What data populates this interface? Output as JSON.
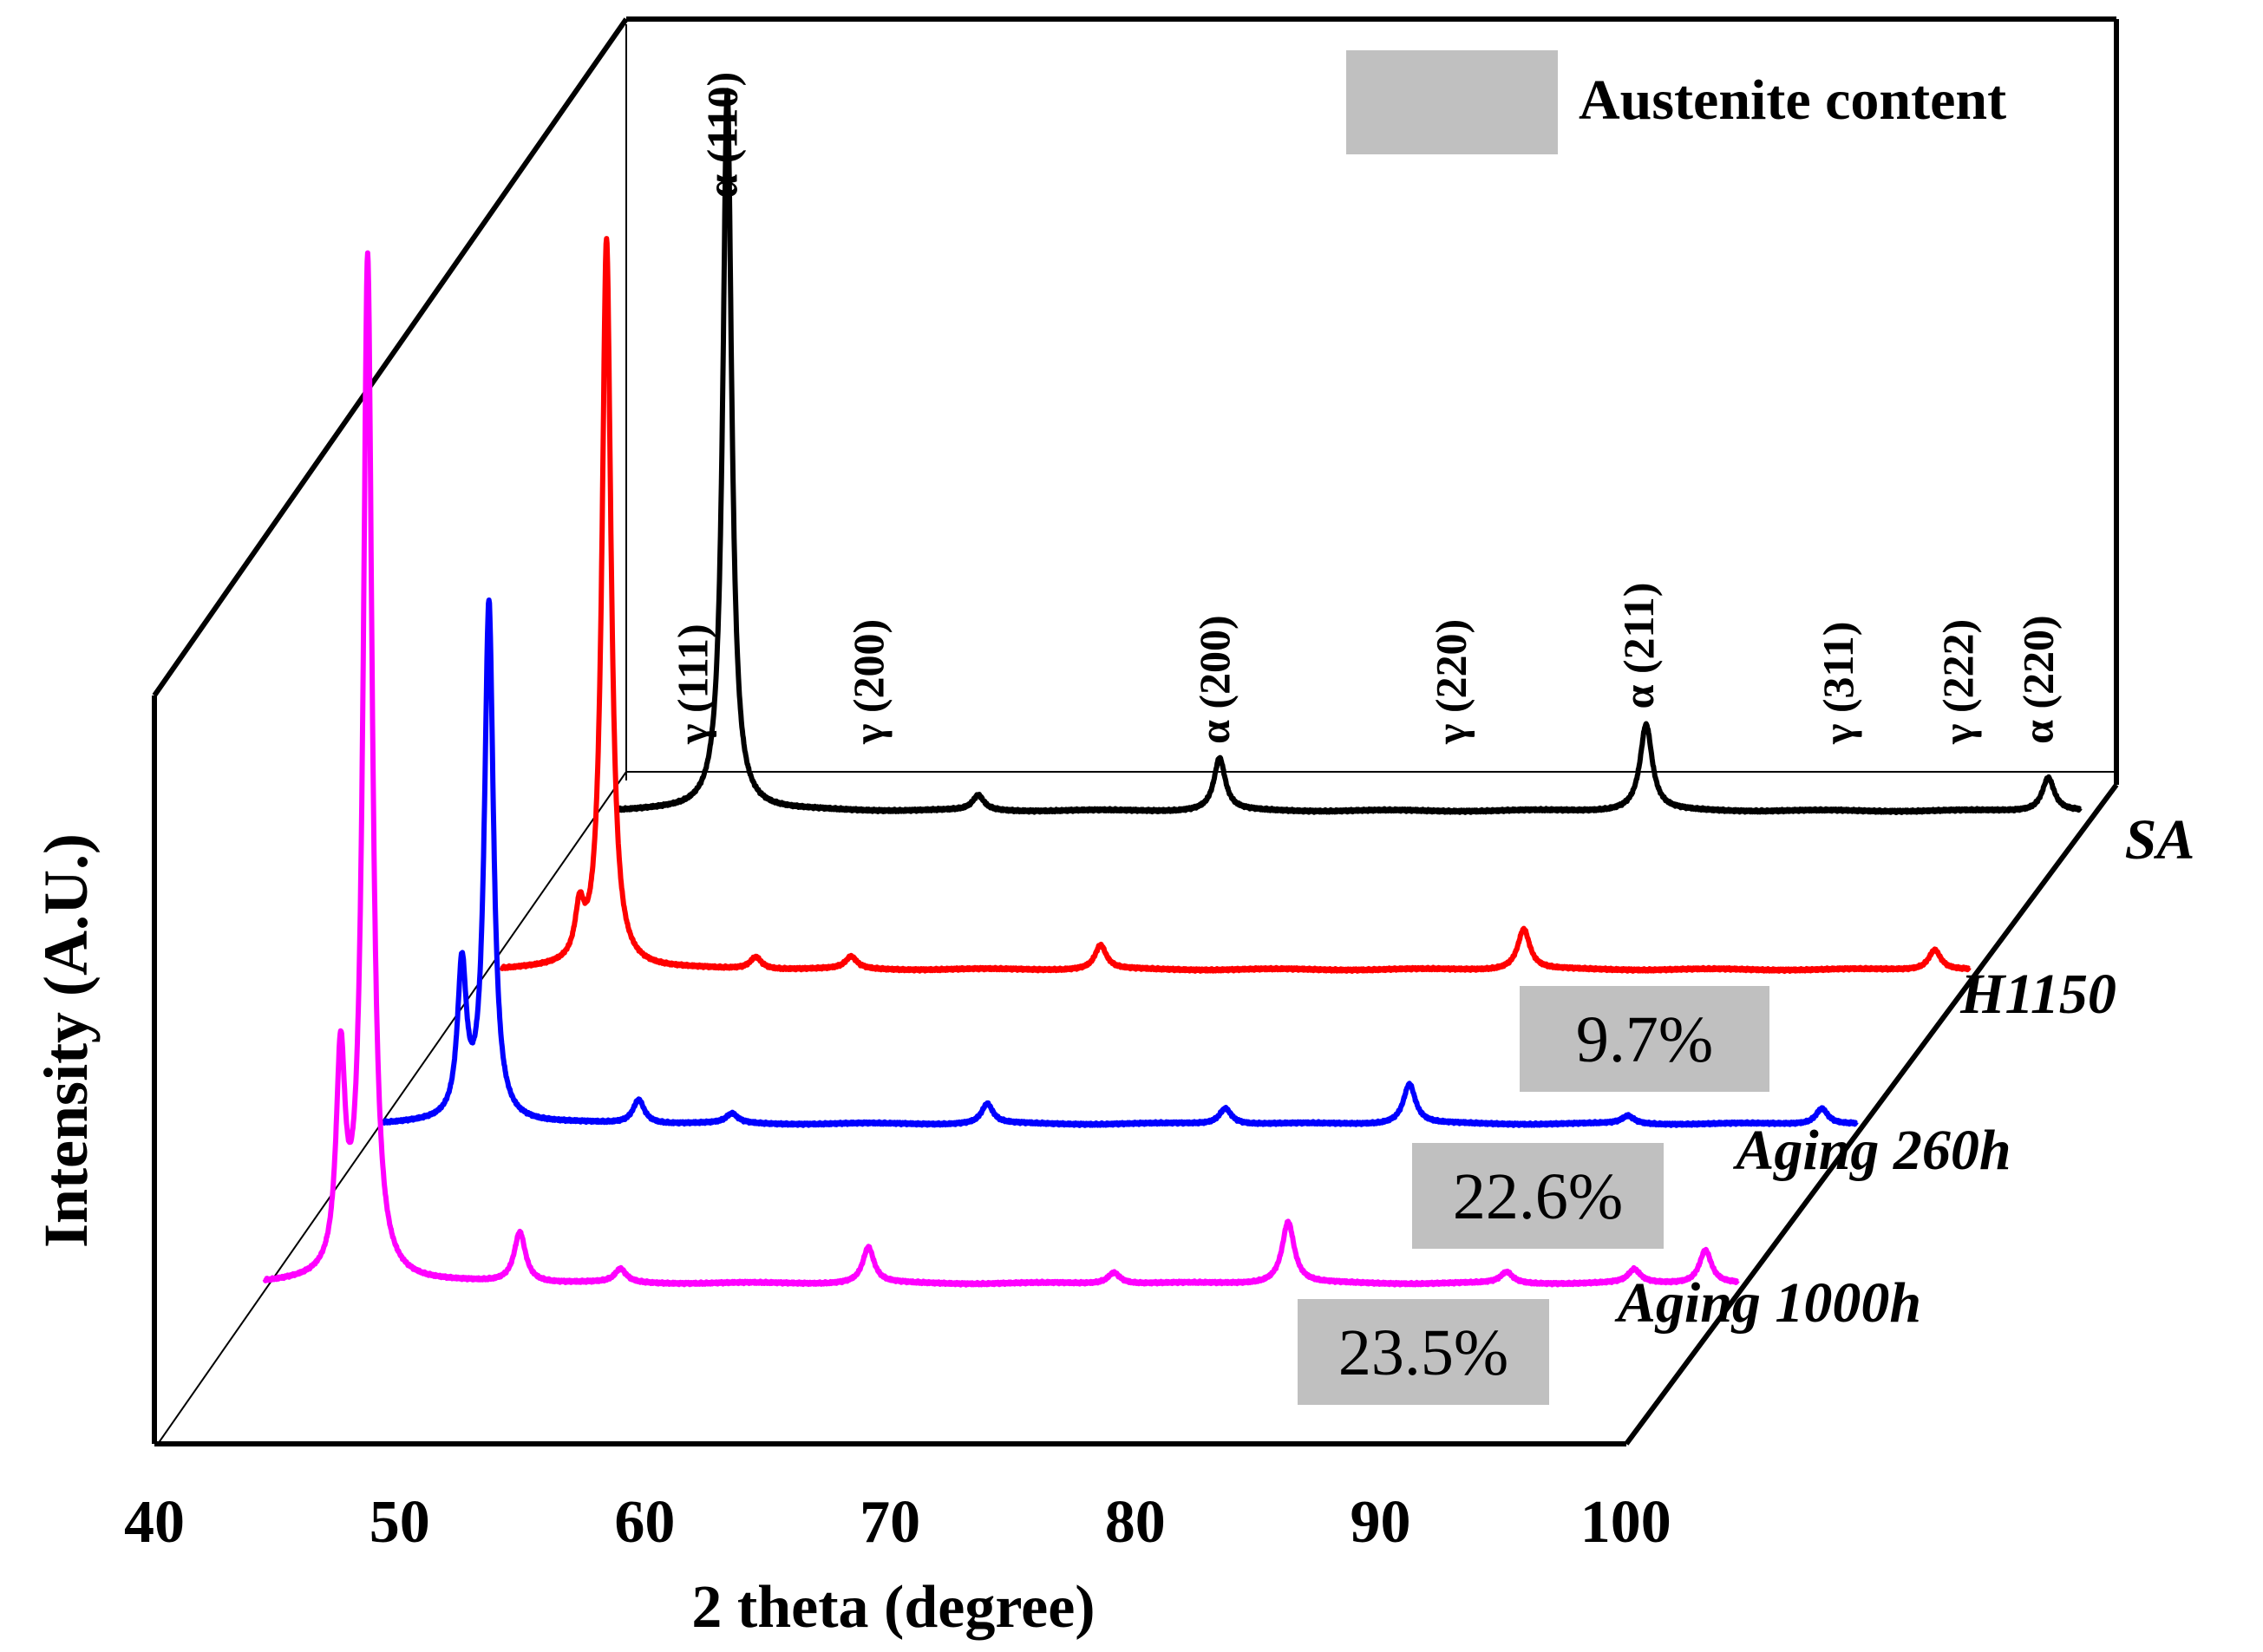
{
  "chart_data": {
    "type": "line",
    "subtype": "stacked-3d-waterfall",
    "xlabel": "2 theta (degree)",
    "ylabel": "Intensity (A.U.)",
    "xlim": [
      40,
      100
    ],
    "x_ticks": [
      "40",
      "50",
      "60",
      "70",
      "80",
      "90",
      "100"
    ],
    "legend": {
      "label": "Austenite content",
      "position": "top-right"
    },
    "series": [
      {
        "name": "SA",
        "color": "#000000",
        "peaks": [
          {
            "x": 44.5,
            "h": 0.96,
            "w": 0.22
          },
          {
            "x": 54.8,
            "h": 0.02,
            "w": 0.28
          },
          {
            "x": 64.7,
            "h": 0.07,
            "w": 0.28
          },
          {
            "x": 82.2,
            "h": 0.115,
            "w": 0.3
          },
          {
            "x": 98.7,
            "h": 0.045,
            "w": 0.3
          }
        ]
      },
      {
        "name": "H1150",
        "color": "#ff0000",
        "austenite": "9.7%",
        "peaks": [
          {
            "x": 43.2,
            "h": 0.06,
            "w": 0.22
          },
          {
            "x": 44.3,
            "h": 0.9,
            "w": 0.22
          },
          {
            "x": 50.4,
            "h": 0.015,
            "w": 0.28
          },
          {
            "x": 54.3,
            "h": 0.015,
            "w": 0.28
          },
          {
            "x": 64.5,
            "h": 0.03,
            "w": 0.28
          },
          {
            "x": 81.8,
            "h": 0.05,
            "w": 0.3
          },
          {
            "x": 98.6,
            "h": 0.025,
            "w": 0.3
          }
        ]
      },
      {
        "name": "Aging 260h",
        "color": "#0000ff",
        "austenite": "22.6%",
        "peaks": [
          {
            "x": 43.2,
            "h": 0.19,
            "w": 0.22
          },
          {
            "x": 44.3,
            "h": 0.65,
            "w": 0.22
          },
          {
            "x": 50.4,
            "h": 0.03,
            "w": 0.28
          },
          {
            "x": 54.2,
            "h": 0.012,
            "w": 0.28
          },
          {
            "x": 64.6,
            "h": 0.025,
            "w": 0.28
          },
          {
            "x": 74.3,
            "h": 0.02,
            "w": 0.3
          },
          {
            "x": 81.8,
            "h": 0.05,
            "w": 0.3
          },
          {
            "x": 90.7,
            "h": 0.01,
            "w": 0.3
          },
          {
            "x": 98.6,
            "h": 0.02,
            "w": 0.3
          }
        ]
      },
      {
        "name": "Aging 1000h",
        "color": "#ff00ff",
        "austenite": "23.5%",
        "peaks": [
          {
            "x": 43.1,
            "h": 0.19,
            "w": 0.22
          },
          {
            "x": 44.2,
            "h": 0.91,
            "w": 0.22
          },
          {
            "x": 50.4,
            "h": 0.045,
            "w": 0.28
          },
          {
            "x": 54.5,
            "h": 0.012,
            "w": 0.28
          },
          {
            "x": 64.6,
            "h": 0.032,
            "w": 0.28
          },
          {
            "x": 74.6,
            "h": 0.01,
            "w": 0.3
          },
          {
            "x": 81.7,
            "h": 0.055,
            "w": 0.3
          },
          {
            "x": 90.6,
            "h": 0.01,
            "w": 0.3
          },
          {
            "x": 95.8,
            "h": 0.012,
            "w": 0.3
          },
          {
            "x": 98.7,
            "h": 0.03,
            "w": 0.3
          }
        ]
      }
    ],
    "peak_labels": [
      {
        "text": "γ (111)",
        "x": 43.4
      },
      {
        "text": "α (110)",
        "x": 44.6
      },
      {
        "text": "γ (200)",
        "x": 50.6
      },
      {
        "text": "α (200)",
        "x": 64.8
      },
      {
        "text": "γ (220)",
        "x": 74.5
      },
      {
        "text": "α (211)",
        "x": 82.2
      },
      {
        "text": "γ (311)",
        "x": 90.4
      },
      {
        "text": "γ (222)",
        "x": 95.3
      },
      {
        "text": "α (220)",
        "x": 98.6
      }
    ]
  }
}
